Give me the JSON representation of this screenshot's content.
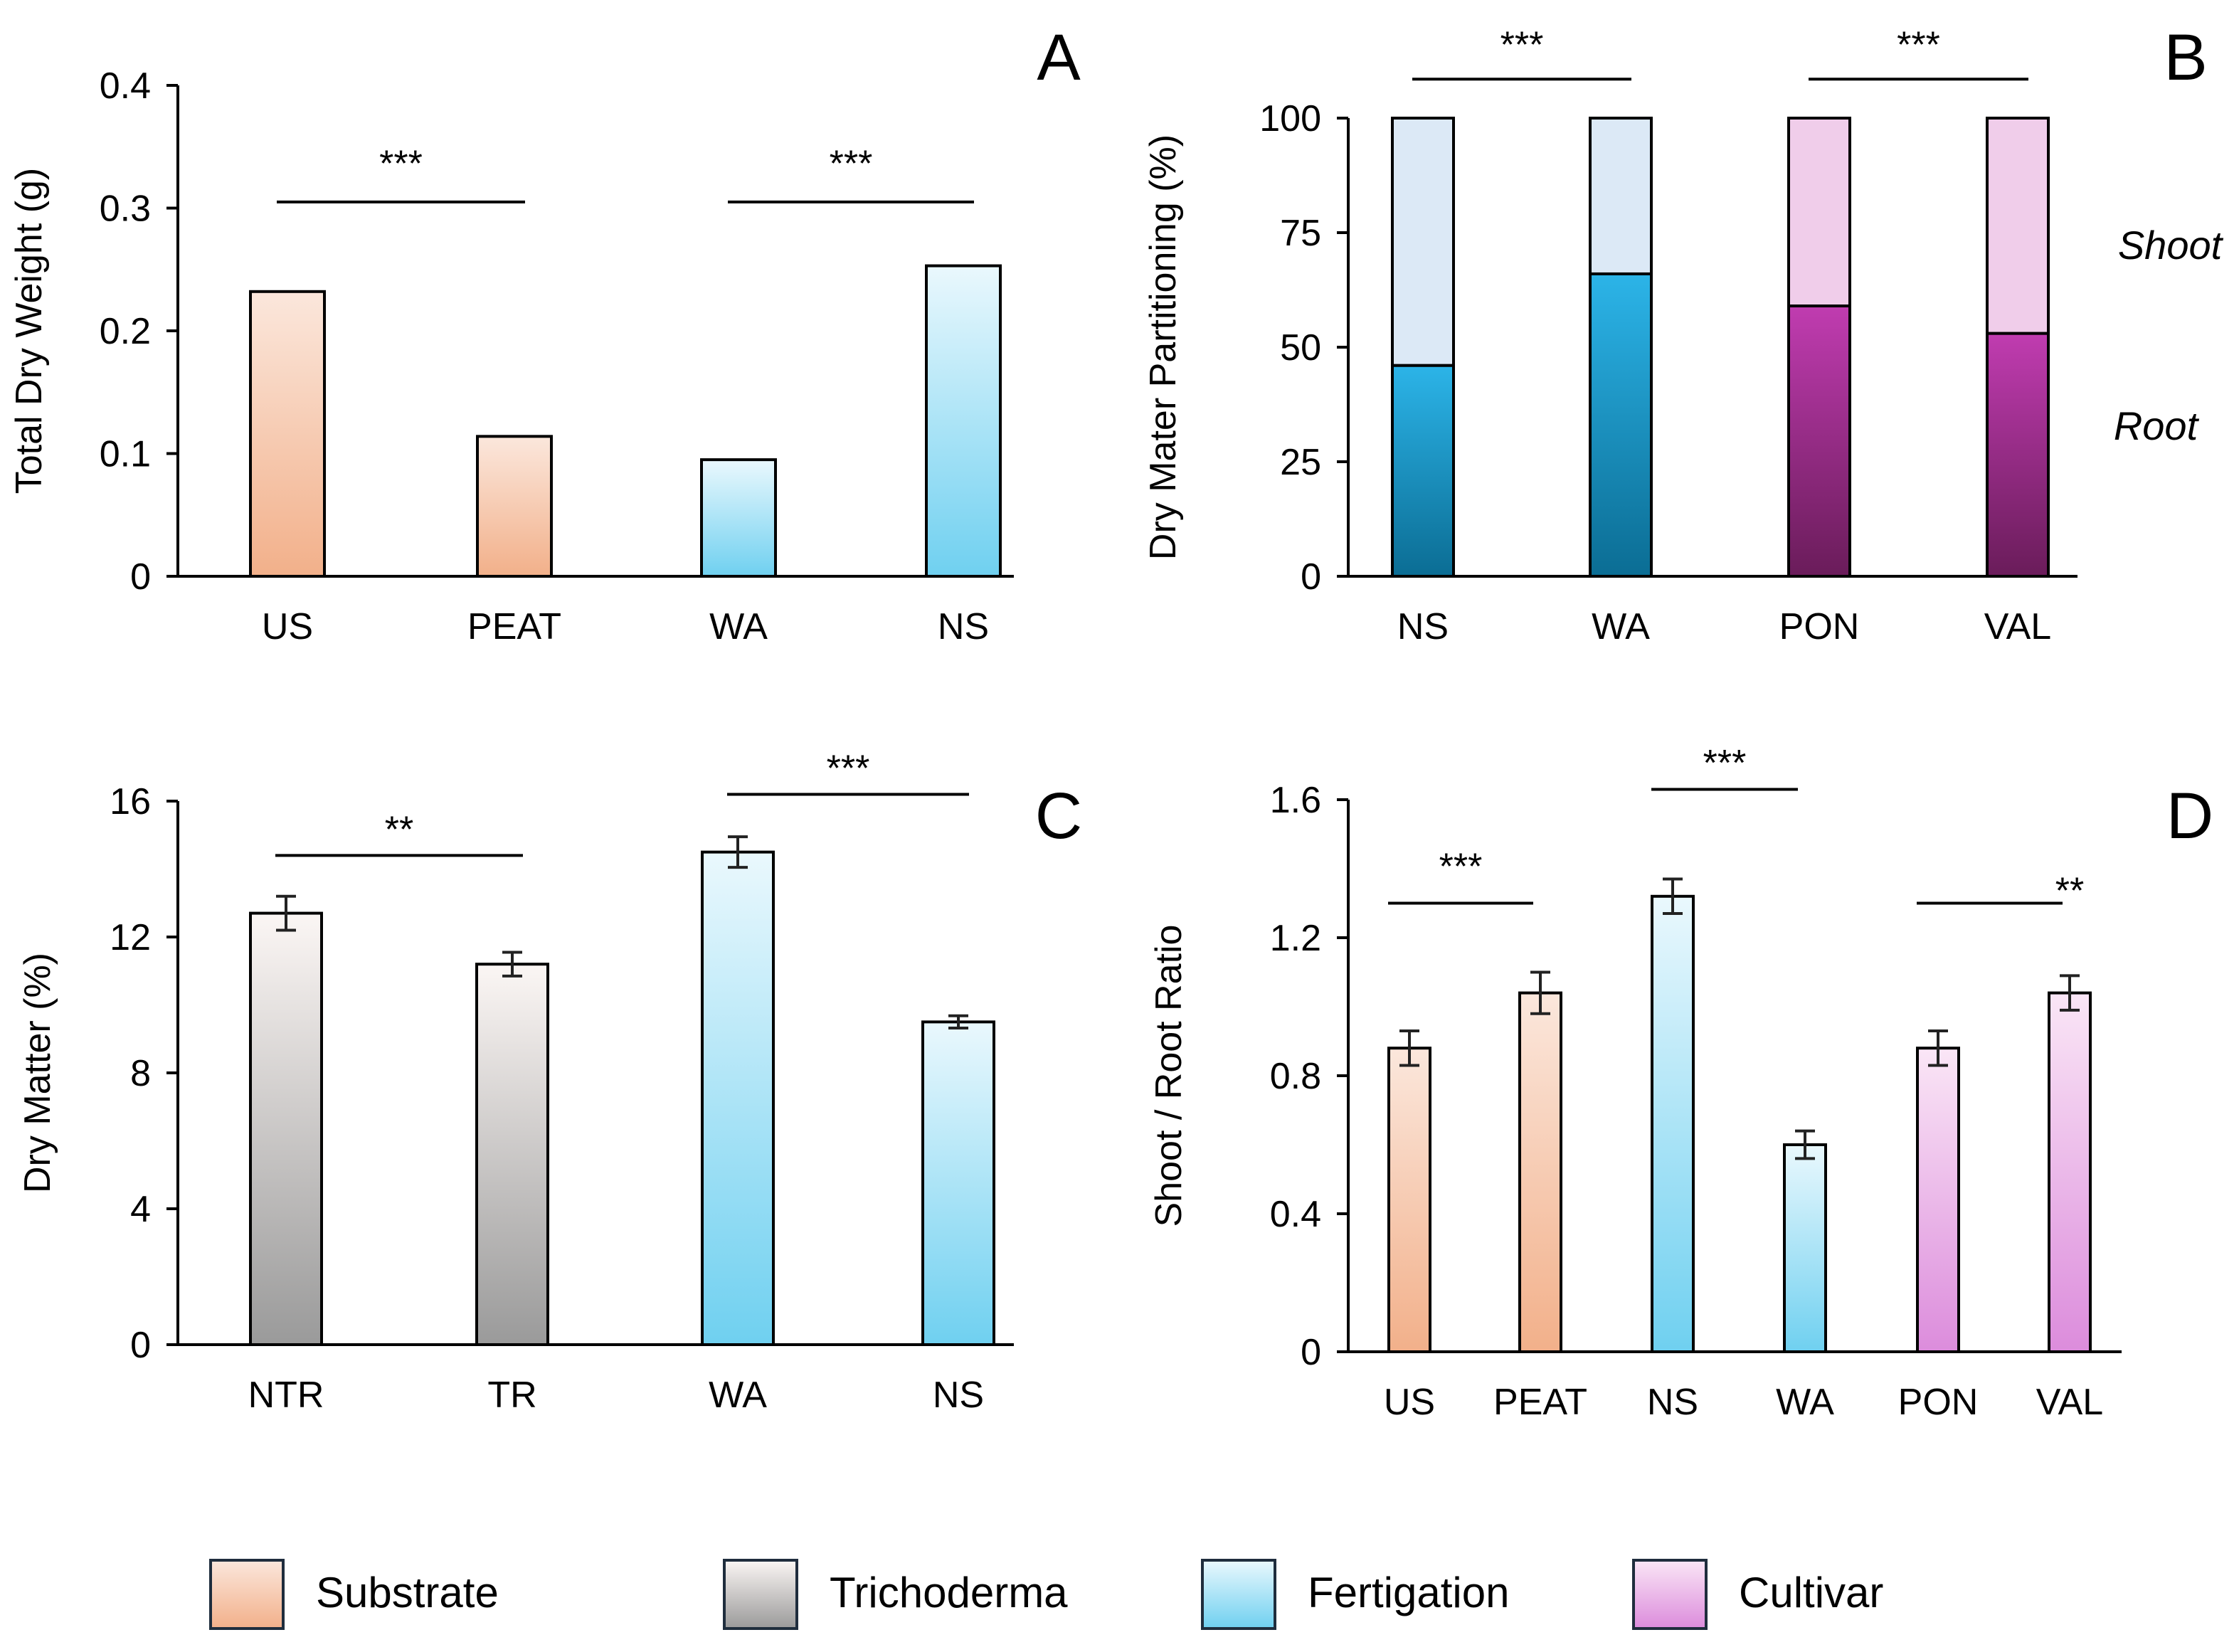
{
  "colors": {
    "Substrate": {
      "top": "#fbe7dc",
      "bottom": "#f2b08a"
    },
    "Trichoderma": {
      "top": "#fbf6f4",
      "bottom": "#9a9a9a"
    },
    "Fertigation": {
      "top": "#eaf8fd",
      "bottom": "#6fd0f0"
    },
    "Cultivar": {
      "top": "#fae6f6",
      "bottom": "#dc8cdc"
    },
    "FertShoot": "#dce9f6",
    "FertRoot": {
      "top": "#2cb4e8",
      "bottom": "#0b6d94"
    },
    "CultShoot": "#f0cdea",
    "CultRoot": {
      "top": "#c03cb0",
      "bottom": "#6a1c5a"
    }
  },
  "legend": [
    {
      "label": "Substrate",
      "group": "Substrate"
    },
    {
      "label": "Trichoderma",
      "group": "Trichoderma"
    },
    {
      "label": "Fertigation",
      "group": "Fertigation"
    },
    {
      "label": "Cultivar",
      "group": "Cultivar"
    }
  ],
  "chart_data": [
    {
      "panel": "A",
      "type": "bar",
      "ylabel": "Total Dry Weight (g)",
      "ylim": [
        0,
        0.4
      ],
      "yticks": [
        "0",
        "0.1",
        "0.2",
        "0.3",
        "0.4"
      ],
      "categories": [
        "US",
        "PEAT",
        "WA",
        "NS"
      ],
      "values": [
        0.232,
        0.114,
        0.095,
        0.253
      ],
      "groups": [
        "Substrate",
        "Substrate",
        "Fertigation",
        "Fertigation"
      ],
      "errors": null,
      "significance": [
        {
          "from": 0,
          "to": 1,
          "label": "***",
          "y": 0.305,
          "label_y": 0.34
        },
        {
          "from": 2,
          "to": 3,
          "label": "***",
          "y": 0.305,
          "label_y": 0.34
        }
      ]
    },
    {
      "panel": "B",
      "type": "stacked-bar",
      "ylabel": "Dry Mater Partitioning (%)",
      "ylim": [
        0,
        100
      ],
      "yticks": [
        "0",
        "25",
        "50",
        "75",
        "100"
      ],
      "categories": [
        "NS",
        "WA",
        "PON",
        "VAL"
      ],
      "series": [
        {
          "name": "Root",
          "values": [
            46,
            66,
            59,
            53
          ]
        },
        {
          "name": "Shoot",
          "values": [
            54,
            34,
            41,
            47
          ]
        }
      ],
      "groups": [
        "Fertigation",
        "Fertigation",
        "Cultivar",
        "Cultivar"
      ],
      "side_labels": [
        "Shoot",
        "Root"
      ],
      "significance": [
        {
          "from": 0,
          "to": 1,
          "label": "***",
          "y": 108.5,
          "label_y": 117
        },
        {
          "from": 2,
          "to": 3,
          "label": "***",
          "y": 108.5,
          "label_y": 117
        }
      ]
    },
    {
      "panel": "C",
      "type": "bar",
      "ylabel": "Dry Matter (%)",
      "ylim": [
        0,
        16
      ],
      "yticks": [
        "0",
        "4",
        "8",
        "12",
        "16"
      ],
      "categories": [
        "NTR",
        "TR",
        "WA",
        "NS"
      ],
      "values": [
        12.7,
        11.2,
        14.5,
        9.5
      ],
      "errors": [
        0.5,
        0.35,
        0.45,
        0.18
      ],
      "groups": [
        "Trichoderma",
        "Trichoderma",
        "Fertigation",
        "Fertigation"
      ],
      "significance": [
        {
          "from": 0,
          "to": 1,
          "label": "**",
          "y": 14.4,
          "label_y": 15.3
        },
        {
          "from": 2,
          "to": 3,
          "label": "***",
          "y": 16.2,
          "label_y": 17.1
        }
      ]
    },
    {
      "panel": "D",
      "type": "bar",
      "ylabel": "Shoot / Root Ratio",
      "ylim": [
        0,
        1.6
      ],
      "yticks": [
        "0",
        "0.4",
        "0.8",
        "1.2",
        "1.6"
      ],
      "categories": [
        "US",
        "PEAT",
        "NS",
        "WA",
        "PON",
        "VAL"
      ],
      "values": [
        0.88,
        1.04,
        1.32,
        0.6,
        0.88,
        1.04
      ],
      "errors": [
        0.05,
        0.06,
        0.05,
        0.04,
        0.05,
        0.05
      ],
      "groups": [
        "Substrate",
        "Substrate",
        "Fertigation",
        "Fertigation",
        "Cultivar",
        "Cultivar"
      ],
      "significance": [
        {
          "from": 0,
          "to": 1,
          "label": "***",
          "y": 1.3,
          "label_y": 1.42
        },
        {
          "from": 2,
          "to": 3,
          "label": "***",
          "y": 1.63,
          "label_y": 1.72
        },
        {
          "from": 4,
          "to": 5,
          "label": "**",
          "y": 1.3,
          "label_y": 1.35
        }
      ]
    }
  ]
}
